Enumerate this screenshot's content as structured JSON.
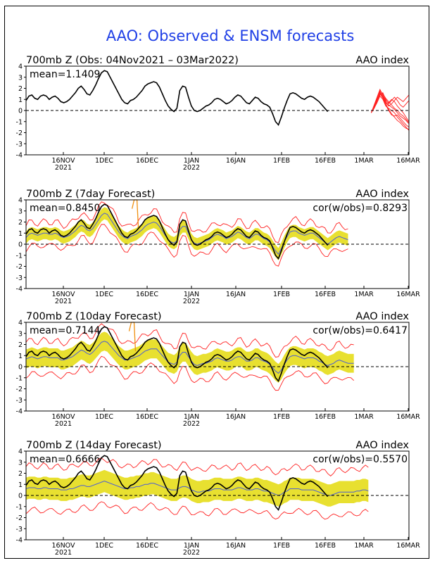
{
  "title": "AAO: Observed & ENSM forecasts",
  "colors": {
    "title": "#1f3fe6",
    "obs": "#000000",
    "ens_mean": "#4b5ed6",
    "spread": "#e8e030",
    "members": "#ff2020",
    "outlier": "#f09010"
  },
  "chart_data": [
    {
      "type": "line",
      "panel_title": "700mb Z (Obs: 04Nov2021 – 03Mar2022)",
      "right_label": "AAO index",
      "stat_left": "mean=1.1409",
      "stat_right": "",
      "ylim": [
        -4,
        4
      ],
      "yticks": [
        "4",
        "3",
        "2",
        "1",
        "0",
        "-1",
        "-2",
        "-3",
        "-4"
      ],
      "xlim": [
        0,
        132
      ],
      "x_ticks": [
        {
          "label": "16NOV",
          "sub": "2021"
        },
        {
          "label": "1DEC",
          "sub": ""
        },
        {
          "label": "16DEC",
          "sub": ""
        },
        {
          "label": "1JAN",
          "sub": "2022"
        },
        {
          "label": "16JAN",
          "sub": ""
        },
        {
          "label": "1FEB",
          "sub": ""
        },
        {
          "label": "16FEB",
          "sub": ""
        },
        {
          "label": "1MAR",
          "sub": ""
        },
        {
          "label": "16MAR",
          "sub": ""
        }
      ],
      "obs_x0": 0,
      "obs": [
        0.9,
        1.3,
        1.4,
        1.1,
        1.0,
        1.3,
        1.4,
        1.3,
        1.0,
        1.2,
        1.3,
        1.1,
        0.8,
        0.7,
        0.8,
        1.0,
        1.3,
        1.6,
        2.0,
        2.2,
        1.9,
        1.5,
        1.4,
        1.8,
        2.3,
        2.9,
        3.4,
        3.6,
        3.5,
        3.0,
        2.5,
        2.0,
        1.5,
        1.0,
        0.7,
        0.6,
        0.9,
        1.0,
        1.2,
        1.5,
        1.8,
        2.2,
        2.4,
        2.5,
        2.6,
        2.5,
        2.1,
        1.5,
        0.9,
        0.4,
        0.1,
        -0.1,
        0.2,
        1.8,
        2.2,
        2.1,
        1.2,
        0.4,
        0.0,
        -0.1,
        0.0,
        0.2,
        0.4,
        0.5,
        0.7,
        1.0,
        1.1,
        1.0,
        0.8,
        0.6,
        0.7,
        0.9,
        1.2,
        1.4,
        1.3,
        1.0,
        0.7,
        0.6,
        0.9,
        1.2,
        1.1,
        0.8,
        0.6,
        0.5,
        0.3,
        -0.3,
        -1.0,
        -1.3,
        -0.6,
        0.2,
        0.9,
        1.5,
        1.6,
        1.5,
        1.3,
        1.1,
        1.0,
        1.2,
        1.3,
        1.2,
        1.0,
        0.8,
        0.5,
        0.2,
        -0.1
      ],
      "members_x0": 119,
      "members": [
        [
          -0.2,
          0.3,
          0.9,
          1.5,
          1.2,
          0.6,
          0.1,
          -0.3,
          -0.6,
          -0.9,
          -1.1,
          -1.4,
          -1.6,
          -1.7
        ],
        [
          -0.2,
          0.4,
          1.1,
          1.7,
          1.3,
          0.8,
          0.5,
          0.3,
          0.1,
          -0.2,
          -0.5,
          -0.7,
          -0.9,
          -1.2
        ],
        [
          -0.2,
          0.2,
          0.8,
          1.4,
          1.6,
          1.0,
          0.6,
          0.9,
          1.2,
          0.9,
          0.5,
          0.3,
          0.6,
          0.9
        ],
        [
          -0.2,
          0.5,
          1.2,
          1.9,
          1.4,
          0.9,
          0.7,
          1.0,
          0.8,
          0.4,
          0.1,
          -0.2,
          -0.6,
          -1.0
        ],
        [
          -0.2,
          0.3,
          1.0,
          1.5,
          1.1,
          0.5,
          0.0,
          -0.4,
          -0.5,
          -0.4,
          -0.7,
          -1.0,
          -1.3,
          -1.5
        ],
        [
          -0.2,
          0.4,
          0.9,
          1.6,
          1.3,
          0.7,
          0.4,
          0.6,
          0.9,
          1.2,
          1.0,
          0.8,
          1.1,
          1.4
        ],
        [
          -0.2,
          0.2,
          0.7,
          1.3,
          1.0,
          0.4,
          0.2,
          0.0,
          -0.2,
          -0.6,
          -0.9,
          -1.2,
          -1.5,
          -1.8
        ],
        [
          -0.2,
          0.3,
          1.1,
          1.8,
          1.5,
          1.1,
          0.8,
          0.5,
          0.2,
          0.0,
          -0.3,
          -0.5,
          -0.8,
          -1.1
        ]
      ]
    },
    {
      "type": "line",
      "panel_title": "700mb Z (7day Forecast)",
      "right_label": "AAO index",
      "stat_left": "mean=0.8450",
      "stat_right": "cor(w/obs)=0.8293",
      "ylim": [
        -4,
        4
      ],
      "yticks": [
        "4",
        "3",
        "2",
        "1",
        "0",
        "-1",
        "-2",
        "-3",
        "-4"
      ],
      "xlim": [
        0,
        132
      ],
      "x_ticks": [
        {
          "label": "16NOV",
          "sub": "2021"
        },
        {
          "label": "1DEC",
          "sub": ""
        },
        {
          "label": "16DEC",
          "sub": ""
        },
        {
          "label": "1JAN",
          "sub": "2022"
        },
        {
          "label": "16JAN",
          "sub": ""
        },
        {
          "label": "1FEB",
          "sub": ""
        },
        {
          "label": "16FEB",
          "sub": ""
        },
        {
          "label": "1MAR",
          "sub": ""
        },
        {
          "label": "16MAR",
          "sub": ""
        }
      ],
      "obs_x0": 0,
      "obs": [
        0.9,
        1.3,
        1.4,
        1.1,
        1.0,
        1.3,
        1.4,
        1.3,
        1.0,
        1.2,
        1.3,
        1.1,
        0.8,
        0.7,
        0.8,
        1.0,
        1.3,
        1.6,
        2.0,
        2.2,
        1.9,
        1.5,
        1.4,
        1.8,
        2.3,
        2.9,
        3.4,
        3.6,
        3.5,
        3.0,
        2.5,
        2.0,
        1.5,
        1.0,
        0.7,
        0.6,
        0.9,
        1.0,
        1.2,
        1.5,
        1.8,
        2.2,
        2.4,
        2.5,
        2.6,
        2.5,
        2.1,
        1.5,
        0.9,
        0.4,
        0.1,
        -0.1,
        0.2,
        1.8,
        2.2,
        2.1,
        1.2,
        0.4,
        0.0,
        -0.1,
        0.0,
        0.2,
        0.4,
        0.5,
        0.7,
        1.0,
        1.1,
        1.0,
        0.8,
        0.6,
        0.7,
        0.9,
        1.2,
        1.4,
        1.3,
        1.0,
        0.7,
        0.6,
        0.9,
        1.2,
        1.1,
        0.8,
        0.6,
        0.5,
        0.3,
        -0.3,
        -1.0,
        -1.3,
        -0.6,
        0.2,
        0.9,
        1.5,
        1.6,
        1.5,
        1.3,
        1.1,
        1.0,
        1.2,
        1.3,
        1.2,
        1.0,
        0.8,
        0.5,
        0.2,
        -0.1
      ],
      "fc_x0": 0,
      "ens_mean": [
        0.6,
        0.9,
        1.0,
        0.9,
        0.8,
        0.9,
        1.0,
        1.0,
        0.9,
        0.9,
        1.0,
        0.9,
        0.7,
        0.6,
        0.7,
        0.8,
        1.0,
        1.2,
        1.5,
        1.7,
        1.6,
        1.3,
        1.2,
        1.4,
        1.8,
        2.2,
        2.6,
        2.8,
        2.7,
        2.3,
        1.9,
        1.5,
        1.1,
        0.8,
        0.6,
        0.5,
        0.7,
        0.8,
        0.9,
        1.1,
        1.3,
        1.6,
        1.8,
        1.9,
        2.0,
        1.9,
        1.6,
        1.2,
        0.8,
        0.4,
        0.2,
        0.1,
        0.3,
        1.3,
        1.6,
        1.6,
        1.0,
        0.4,
        0.1,
        0.0,
        0.1,
        0.2,
        0.3,
        0.4,
        0.6,
        0.8,
        0.9,
        0.8,
        0.7,
        0.5,
        0.6,
        0.7,
        0.9,
        1.1,
        1.0,
        0.8,
        0.6,
        0.5,
        0.7,
        0.9,
        0.9,
        0.7,
        0.5,
        0.4,
        0.2,
        -0.2,
        -0.6,
        -0.9,
        -0.4,
        0.2,
        0.7,
        1.1,
        1.2,
        1.2,
        1.0,
        0.9,
        0.8,
        0.9,
        1.0,
        1.0,
        0.8,
        0.6,
        0.4,
        0.2,
        0.0,
        0.2,
        0.4,
        0.6,
        0.7,
        0.6,
        0.5,
        0.4
      ],
      "spread": 0.55,
      "envelope": 1.05,
      "outlier_spike_x": 38
    },
    {
      "type": "line",
      "panel_title": "700mb Z (10day Forecast)",
      "right_label": "AAO index",
      "stat_left": "mean=0.7144",
      "stat_right": "cor(w/obs)=0.6417",
      "ylim": [
        -4,
        4
      ],
      "yticks": [
        "4",
        "3",
        "2",
        "1",
        "0",
        "-1",
        "-2",
        "-3",
        "-4"
      ],
      "xlim": [
        0,
        132
      ],
      "x_ticks": [
        {
          "label": "16NOV",
          "sub": "2021"
        },
        {
          "label": "1DEC",
          "sub": ""
        },
        {
          "label": "16DEC",
          "sub": ""
        },
        {
          "label": "1JAN",
          "sub": "2022"
        },
        {
          "label": "16JAN",
          "sub": ""
        },
        {
          "label": "1FEB",
          "sub": ""
        },
        {
          "label": "16FEB",
          "sub": ""
        },
        {
          "label": "1MAR",
          "sub": ""
        },
        {
          "label": "16MAR",
          "sub": ""
        }
      ],
      "obs_x0": 0,
      "obs": [
        0.9,
        1.3,
        1.4,
        1.1,
        1.0,
        1.3,
        1.4,
        1.3,
        1.0,
        1.2,
        1.3,
        1.1,
        0.8,
        0.7,
        0.8,
        1.0,
        1.3,
        1.6,
        2.0,
        2.2,
        1.9,
        1.5,
        1.4,
        1.8,
        2.3,
        2.9,
        3.4,
        3.6,
        3.5,
        3.0,
        2.5,
        2.0,
        1.5,
        1.0,
        0.7,
        0.6,
        0.9,
        1.0,
        1.2,
        1.5,
        1.8,
        2.2,
        2.4,
        2.5,
        2.6,
        2.5,
        2.1,
        1.5,
        0.9,
        0.4,
        0.1,
        -0.1,
        0.2,
        1.8,
        2.2,
        2.1,
        1.2,
        0.4,
        0.0,
        -0.1,
        0.0,
        0.2,
        0.4,
        0.5,
        0.7,
        1.0,
        1.1,
        1.0,
        0.8,
        0.6,
        0.7,
        0.9,
        1.2,
        1.4,
        1.3,
        1.0,
        0.7,
        0.6,
        0.9,
        1.2,
        1.1,
        0.8,
        0.6,
        0.5,
        0.3,
        -0.3,
        -1.0,
        -1.3,
        -0.6,
        0.2,
        0.9,
        1.5,
        1.6,
        1.5,
        1.3,
        1.1,
        1.0,
        1.2,
        1.3,
        1.2,
        1.0,
        0.8,
        0.5,
        0.2,
        -0.1
      ],
      "fc_x0": 0,
      "ens_mean": [
        0.7,
        0.8,
        0.9,
        0.8,
        0.7,
        0.8,
        0.9,
        0.9,
        0.8,
        0.8,
        0.8,
        0.8,
        0.6,
        0.6,
        0.7,
        0.8,
        0.9,
        1.1,
        1.3,
        1.5,
        1.4,
        1.2,
        1.1,
        1.3,
        1.6,
        1.9,
        2.2,
        2.3,
        2.2,
        1.9,
        1.6,
        1.3,
        1.0,
        0.8,
        0.6,
        0.6,
        0.7,
        0.8,
        0.9,
        1.0,
        1.2,
        1.4,
        1.5,
        1.6,
        1.6,
        1.6,
        1.3,
        1.0,
        0.7,
        0.4,
        0.3,
        0.2,
        0.4,
        1.0,
        1.3,
        1.3,
        0.9,
        0.5,
        0.2,
        0.1,
        0.2,
        0.3,
        0.3,
        0.4,
        0.5,
        0.7,
        0.8,
        0.7,
        0.6,
        0.5,
        0.5,
        0.6,
        0.8,
        0.9,
        0.9,
        0.7,
        0.5,
        0.5,
        0.6,
        0.8,
        0.8,
        0.6,
        0.5,
        0.4,
        0.2,
        -0.1,
        -0.4,
        -0.6,
        -0.3,
        0.2,
        0.6,
        0.9,
        1.0,
        1.0,
        0.9,
        0.8,
        0.7,
        0.8,
        0.8,
        0.8,
        0.7,
        0.5,
        0.4,
        0.2,
        0.1,
        0.2,
        0.3,
        0.5,
        0.6,
        0.5,
        0.4,
        0.3,
        0.3,
        0.3
      ],
      "spread": 0.85,
      "envelope": 1.5,
      "outlier_spike_x": 37
    },
    {
      "type": "line",
      "panel_title": "700mb Z (14day Forecast)",
      "right_label": "AAO index",
      "stat_left": "mean=0.6666",
      "stat_right": "cor(w/obs)=0.5570",
      "ylim": [
        -4,
        4
      ],
      "yticks": [
        "4",
        "3",
        "2",
        "1",
        "0",
        "-1",
        "-2",
        "-3",
        "-4"
      ],
      "xlim": [
        0,
        132
      ],
      "x_ticks": [
        {
          "label": "16NOV",
          "sub": "2021"
        },
        {
          "label": "1DEC",
          "sub": ""
        },
        {
          "label": "16DEC",
          "sub": ""
        },
        {
          "label": "1JAN",
          "sub": "2022"
        },
        {
          "label": "16JAN",
          "sub": ""
        },
        {
          "label": "1FEB",
          "sub": ""
        },
        {
          "label": "16FEB",
          "sub": ""
        },
        {
          "label": "1MAR",
          "sub": ""
        },
        {
          "label": "16MAR",
          "sub": ""
        }
      ],
      "obs_x0": 0,
      "obs": [
        0.9,
        1.3,
        1.4,
        1.1,
        1.0,
        1.3,
        1.4,
        1.3,
        1.0,
        1.2,
        1.3,
        1.1,
        0.8,
        0.7,
        0.8,
        1.0,
        1.3,
        1.6,
        2.0,
        2.2,
        1.9,
        1.5,
        1.4,
        1.8,
        2.3,
        2.9,
        3.4,
        3.6,
        3.5,
        3.0,
        2.5,
        2.0,
        1.5,
        1.0,
        0.7,
        0.6,
        0.9,
        1.0,
        1.2,
        1.5,
        1.8,
        2.2,
        2.4,
        2.5,
        2.6,
        2.5,
        2.1,
        1.5,
        0.9,
        0.4,
        0.1,
        -0.1,
        0.2,
        1.8,
        2.2,
        2.1,
        1.2,
        0.4,
        0.0,
        -0.1,
        0.0,
        0.2,
        0.4,
        0.5,
        0.7,
        1.0,
        1.1,
        1.0,
        0.8,
        0.6,
        0.7,
        0.9,
        1.2,
        1.4,
        1.3,
        1.0,
        0.7,
        0.6,
        0.9,
        1.2,
        1.1,
        0.8,
        0.6,
        0.5,
        0.3,
        -0.3,
        -1.0,
        -1.3,
        -0.6,
        0.2,
        0.9,
        1.5,
        1.6,
        1.5,
        1.3,
        1.1,
        1.0,
        1.2,
        1.3,
        1.2,
        1.0,
        0.8,
        0.5,
        0.2,
        -0.1
      ],
      "fc_x0": 0,
      "ens_mean": [
        0.6,
        0.7,
        0.7,
        0.7,
        0.6,
        0.6,
        0.7,
        0.7,
        0.6,
        0.6,
        0.6,
        0.6,
        0.5,
        0.5,
        0.5,
        0.6,
        0.6,
        0.7,
        0.8,
        0.9,
        0.9,
        0.8,
        0.8,
        0.9,
        1.0,
        1.1,
        1.2,
        1.3,
        1.2,
        1.1,
        1.0,
        0.9,
        0.8,
        0.7,
        0.6,
        0.6,
        0.7,
        0.7,
        0.8,
        0.8,
        0.9,
        1.0,
        1.0,
        1.1,
        1.1,
        1.0,
        0.9,
        0.8,
        0.7,
        0.6,
        0.5,
        0.5,
        0.5,
        0.7,
        0.8,
        0.8,
        0.7,
        0.5,
        0.4,
        0.3,
        0.3,
        0.4,
        0.4,
        0.4,
        0.5,
        0.6,
        0.6,
        0.6,
        0.5,
        0.5,
        0.5,
        0.5,
        0.6,
        0.7,
        0.7,
        0.6,
        0.5,
        0.5,
        0.5,
        0.6,
        0.6,
        0.5,
        0.4,
        0.4,
        0.3,
        0.2,
        0.1,
        0.0,
        0.1,
        0.3,
        0.4,
        0.6,
        0.6,
        0.6,
        0.6,
        0.5,
        0.5,
        0.5,
        0.5,
        0.5,
        0.4,
        0.3,
        0.2,
        0.1,
        0.0,
        0.0,
        0.1,
        0.2,
        0.3,
        0.3,
        0.3,
        0.3,
        0.3,
        0.3,
        0.4,
        0.4,
        0.5,
        0.5,
        0.4
      ],
      "spread": 1.0,
      "envelope": 2.0,
      "outlier_spike_x": -1
    }
  ]
}
